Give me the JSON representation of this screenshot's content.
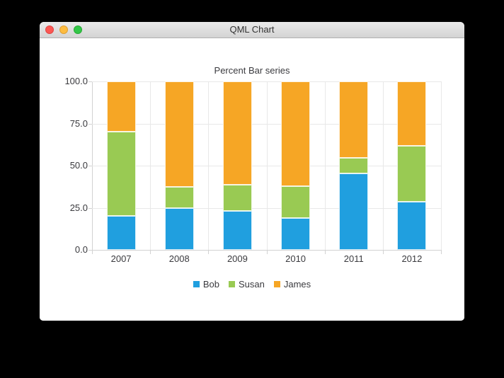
{
  "window": {
    "title": "QML Chart",
    "traffic_lights": {
      "close": "close-window",
      "minimize": "minimize-window",
      "zoom": "zoom-window"
    }
  },
  "chart_data": {
    "type": "bar",
    "subtype": "percent-stacked",
    "title": "Percent Bar series",
    "categories": [
      "2007",
      "2008",
      "2009",
      "2010",
      "2011",
      "2012"
    ],
    "series": [
      {
        "name": "Bob",
        "color": "#209fdf",
        "percents": [
          20.0,
          25.0,
          23.1,
          19.0,
          45.5,
          28.6
        ]
      },
      {
        "name": "Susan",
        "color": "#99ca53",
        "percents": [
          50.0,
          12.5,
          15.4,
          19.0,
          9.1,
          33.3
        ]
      },
      {
        "name": "James",
        "color": "#f6a625",
        "percents": [
          30.0,
          62.5,
          61.5,
          62.0,
          45.4,
          38.1
        ]
      }
    ],
    "y_axis": {
      "min": 0,
      "max": 100,
      "tick_labels": [
        "100.0",
        "75.0",
        "50.0",
        "25.0",
        "0.0"
      ],
      "tick_values": [
        100,
        75,
        50,
        25,
        0
      ]
    },
    "grid": true,
    "legend_position": "bottom",
    "legend": [
      "Bob",
      "Susan",
      "James"
    ]
  },
  "colors": {
    "bob_blue": "#209fdf",
    "susan_green": "#99ca53",
    "james_orange": "#f6a625",
    "grid": "#e8e8e8",
    "axis": "#d2d2d2",
    "label_text": "#3a3a3e"
  }
}
